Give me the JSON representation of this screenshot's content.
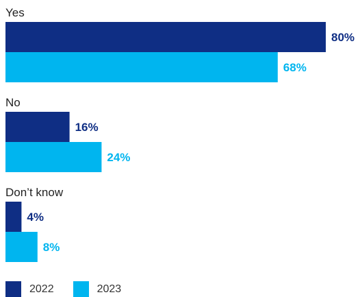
{
  "chart_data": {
    "type": "bar",
    "orientation": "horizontal",
    "categories": [
      "Yes",
      "No",
      "Don’t know"
    ],
    "series": [
      {
        "name": "2022",
        "values": [
          80,
          16,
          4
        ],
        "color": "#0f2e84"
      },
      {
        "name": "2023",
        "values": [
          68,
          24,
          8
        ],
        "color": "#00b5ef"
      }
    ],
    "value_suffix": "%",
    "xlim": [
      0,
      100
    ],
    "grid": false,
    "legend_position": "bottom-left"
  }
}
